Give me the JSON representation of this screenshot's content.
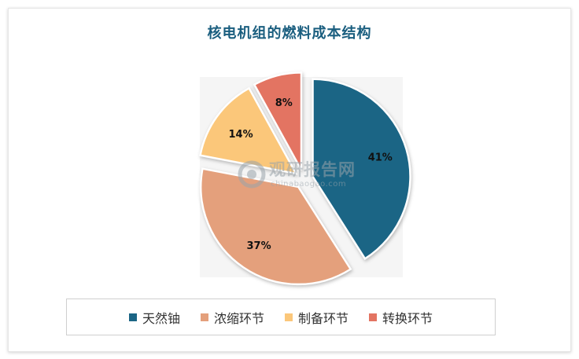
{
  "chart_data": {
    "type": "pie",
    "title": "核电机组的燃料成本结构",
    "categories": [
      "天然铀",
      "浓缩环节",
      "制备环节",
      "转换环节"
    ],
    "values": [
      41,
      37,
      14,
      8
    ],
    "labels": [
      "41%",
      "37%",
      "14%",
      "8%"
    ],
    "colors": [
      "#1b6585",
      "#e4a07c",
      "#fbc77a",
      "#e37462"
    ],
    "legend_position": "bottom"
  },
  "watermark": {
    "brand": "观研报告网",
    "url": "chinabaogao.com"
  }
}
